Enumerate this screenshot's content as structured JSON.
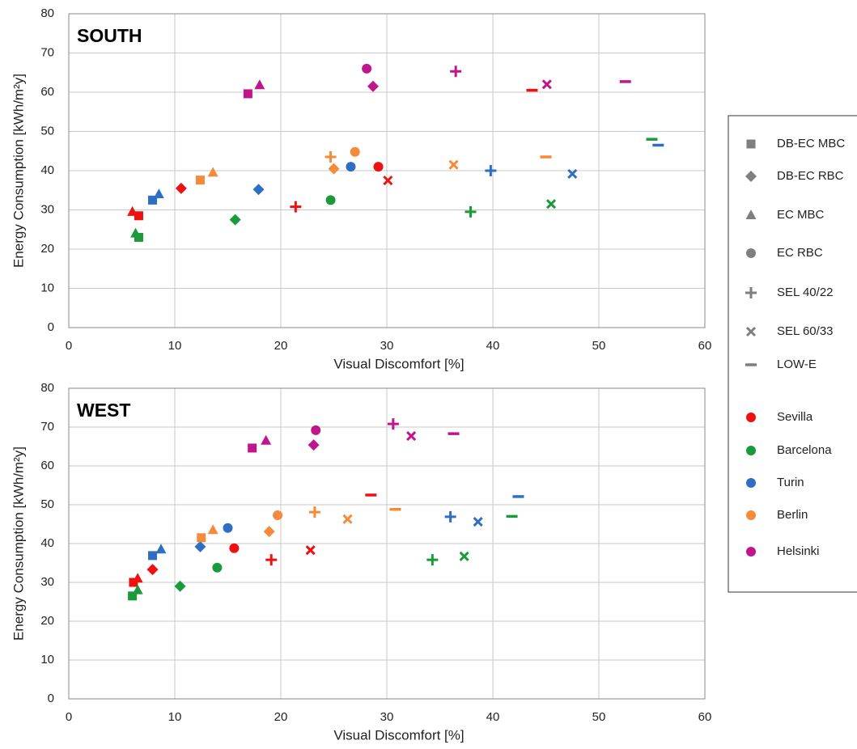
{
  "legend": {
    "markers": [
      {
        "name": "DB-EC MBC",
        "marker": "square"
      },
      {
        "name": "DB-EC RBC",
        "marker": "diamond"
      },
      {
        "name": "EC MBC",
        "marker": "triangle"
      },
      {
        "name": "EC RBC",
        "marker": "circle"
      },
      {
        "name": "SEL 40/22",
        "marker": "plus"
      },
      {
        "name": "SEL 60/33",
        "marker": "cross"
      },
      {
        "name": "LOW-E",
        "marker": "dash"
      }
    ],
    "marker_color": "#7f7f7f",
    "cities": [
      {
        "name": "Sevilla",
        "color": "#ee1111"
      },
      {
        "name": "Barcelona",
        "color": "#1a9a3a"
      },
      {
        "name": "Turin",
        "color": "#2e6fc4"
      },
      {
        "name": "Berlin",
        "color": "#f58a3a"
      },
      {
        "name": "Helsinki",
        "color": "#c0168c"
      }
    ]
  },
  "chart_data": [
    {
      "type": "scatter",
      "title": "SOUTH",
      "x_label": "Visual Discomfort [%]",
      "y_label": "Energy Consumption [kWh/m²y]",
      "xlim": [
        0,
        60
      ],
      "ylim": [
        0,
        80
      ],
      "xticks": [
        0,
        10,
        20,
        30,
        40,
        50,
        60
      ],
      "yticks": [
        0,
        10,
        20,
        30,
        40,
        50,
        60,
        70,
        80
      ],
      "grid": true,
      "series": [
        {
          "x": [
            6.6,
            10.6,
            6.0,
            29.2,
            21.4,
            30.1,
            43.7
          ],
          "values": [
            28.5,
            35.5,
            29.5,
            41,
            30.8,
            37.5,
            60.5
          ]
        },
        {
          "x": [
            6.6,
            15.7,
            6.3,
            24.7,
            37.9,
            45.5,
            55
          ],
          "values": [
            23,
            27.5,
            24,
            32.5,
            29.5,
            31.5,
            48
          ]
        },
        {
          "x": [
            7.9,
            17.9,
            8.5,
            26.6,
            39.8,
            47.5,
            55.6
          ],
          "values": [
            32.5,
            35.2,
            34,
            41,
            40,
            39.2,
            46.5
          ]
        },
        {
          "x": [
            12.4,
            25,
            13.6,
            27,
            24.7,
            36.3,
            45
          ],
          "values": [
            37.6,
            40.5,
            39.5,
            44.8,
            43.5,
            41.5,
            43.5
          ]
        },
        {
          "x": [
            16.9,
            28.7,
            18,
            28.1,
            36.5,
            45.1,
            52.5
          ],
          "values": [
            59.6,
            61.5,
            61.8,
            66,
            65.3,
            62,
            62.7
          ]
        }
      ]
    },
    {
      "type": "scatter",
      "title": "WEST",
      "x_label": "Visual Discomfort [%]",
      "y_label": "Energy Consumption [kWh/m²y]",
      "xlim": [
        0,
        60
      ],
      "ylim": [
        0,
        80
      ],
      "xticks": [
        0,
        10,
        20,
        30,
        40,
        50,
        60
      ],
      "yticks": [
        0,
        10,
        20,
        30,
        40,
        50,
        60,
        70,
        80
      ],
      "grid": true,
      "series": [
        {
          "x": [
            6.1,
            7.9,
            6.5,
            15.6,
            19.1,
            22.8,
            28.5
          ],
          "values": [
            30,
            33.3,
            31,
            38.8,
            35.8,
            38.3,
            52.5
          ]
        },
        {
          "x": [
            6.0,
            10.5,
            6.5,
            14,
            34.3,
            37.3,
            41.8
          ],
          "values": [
            26.5,
            29,
            28,
            33.8,
            35.8,
            36.7,
            47
          ]
        },
        {
          "x": [
            7.9,
            12.4,
            8.7,
            15,
            36,
            38.6,
            42.4
          ],
          "values": [
            36.9,
            39.2,
            38.5,
            44,
            46.9,
            45.6,
            52.1
          ]
        },
        {
          "x": [
            12.5,
            18.9,
            13.6,
            19.7,
            23.2,
            26.3,
            30.8
          ],
          "values": [
            41.5,
            43.1,
            43.5,
            47.3,
            48.1,
            46.3,
            48.8
          ]
        },
        {
          "x": [
            17.3,
            23.1,
            18.6,
            23.3,
            30.6,
            32.3,
            36.3
          ],
          "values": [
            64.6,
            65.4,
            66.5,
            69.2,
            70.8,
            67.7,
            68.3
          ]
        }
      ]
    }
  ]
}
